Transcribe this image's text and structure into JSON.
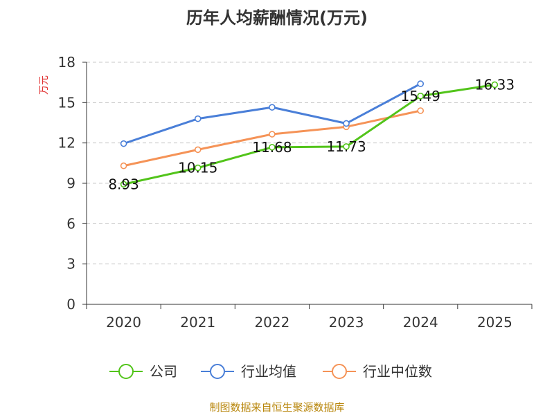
{
  "chart_data": {
    "type": "line",
    "title": "历年人均薪酬情况(万元)",
    "ylabel": "万元",
    "xlabel": "",
    "categories": [
      "2020",
      "2021",
      "2022",
      "2023",
      "2024",
      "2025"
    ],
    "ylim": [
      0,
      18
    ],
    "yticks": [
      0,
      3,
      6,
      9,
      12,
      15,
      18
    ],
    "grid": true,
    "legend_position": "bottom",
    "series": [
      {
        "name": "公司",
        "color": "#52c41a",
        "values": [
          8.93,
          10.15,
          11.68,
          11.73,
          15.49,
          16.33
        ],
        "labels": [
          "8.93",
          "10.15",
          "11.68",
          "11.73",
          "15.49",
          "16.33"
        ]
      },
      {
        "name": "行业均值",
        "color": "#4a7fd8",
        "values": [
          11.95,
          13.8,
          14.65,
          13.45,
          16.4,
          null
        ]
      },
      {
        "name": "行业中位数",
        "color": "#f59357",
        "values": [
          10.3,
          11.5,
          12.65,
          13.2,
          14.4,
          null
        ]
      }
    ]
  },
  "source": "制图数据来自恒生聚源数据库"
}
